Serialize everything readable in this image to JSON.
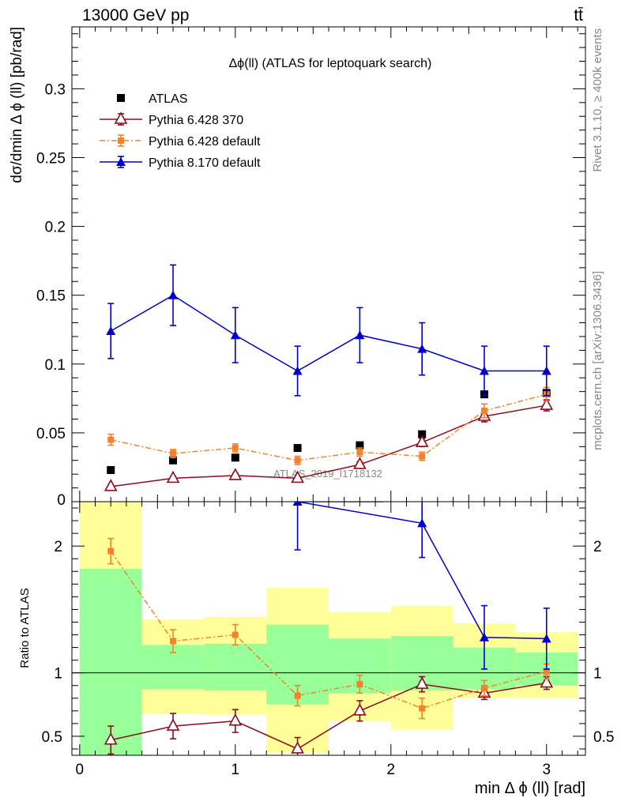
{
  "header": {
    "energy_label": "13000 GeV pp",
    "process_label": "tt̄"
  },
  "side_labels": {
    "rivet": "Rivet 3.1.10, ≥ 400k events",
    "mcplots": "mcplots.cern.ch [arXiv:1306.3436]"
  },
  "watermark": "ATLAS_2019_I1718132",
  "colors": {
    "atlas": "#000000",
    "py6_370": "#8b0b1f",
    "py6_default": "#f5822a",
    "py8": "#0000cc",
    "band_inner": "#99ff99",
    "band_outer": "#ffff99"
  },
  "chart_data": [
    {
      "type": "scatter",
      "title": "Δϕ(ll) (ATLAS for leptoquark search)",
      "xlabel": "min Δ ϕ (ll) [rad]",
      "ylabel": "dσ/dmin Δ ϕ (ll) [pb/rad]",
      "xlim": [
        -0.05,
        3.25
      ],
      "ylim": [
        0,
        0.345
      ],
      "yticks": [
        0.05,
        0.1,
        0.15,
        0.2,
        0.25,
        0.3
      ],
      "ytick_labels": [
        "0.05",
        "0.1",
        "0.15",
        "0.2",
        "0.25",
        "0.3"
      ],
      "yzero_label": "0",
      "legend_position": "top-left",
      "x": [
        0.2,
        0.6,
        1.0,
        1.4,
        1.8,
        2.2,
        2.6,
        3.0
      ],
      "series": [
        {
          "name": "ATLAS",
          "marker": "square",
          "values": [
            0.023,
            0.03,
            0.032,
            0.039,
            0.041,
            0.049,
            0.078,
            0.079
          ]
        },
        {
          "name": "Pythia 6.428 370",
          "marker": "open-triangle",
          "values": [
            0.011,
            0.017,
            0.019,
            0.017,
            0.027,
            0.043,
            0.062,
            0.07
          ],
          "errors": [
            0.001,
            0.001,
            0.0015,
            0.001,
            0.002,
            0.003,
            0.004,
            0.004
          ]
        },
        {
          "name": "Pythia 6.428 default",
          "marker": "square-small",
          "dashed": true,
          "values": [
            0.045,
            0.035,
            0.039,
            0.03,
            0.036,
            0.033,
            0.066,
            0.078
          ],
          "errors": [
            0.004,
            0.003,
            0.003,
            0.003,
            0.003,
            0.003,
            0.005,
            0.005
          ]
        },
        {
          "name": "Pythia 8.170 default",
          "marker": "triangle",
          "values": [
            0.124,
            0.15,
            0.121,
            0.095,
            0.121,
            0.111,
            0.095,
            0.095
          ],
          "errors": [
            0.02,
            0.022,
            0.02,
            0.018,
            0.02,
            0.019,
            0.018,
            0.018
          ]
        }
      ]
    },
    {
      "type": "scatter",
      "ylabel": "Ratio to ATLAS",
      "xlabel": "min Δ ϕ (ll) [rad]",
      "xlim": [
        -0.05,
        3.25
      ],
      "ylim": [
        0.35,
        2.35
      ],
      "xticks": [
        0,
        1,
        2,
        3
      ],
      "xtick_labels": [
        "0",
        "1",
        "2",
        "3"
      ],
      "yticks": [
        0.5,
        1,
        2
      ],
      "ytick_labels": [
        "0.5",
        "1",
        "2"
      ],
      "bins": [
        [
          0,
          0.4
        ],
        [
          0.4,
          0.8
        ],
        [
          0.8,
          1.2
        ],
        [
          1.2,
          1.6
        ],
        [
          1.6,
          2.0
        ],
        [
          2.0,
          2.4
        ],
        [
          2.4,
          2.8
        ],
        [
          2.8,
          3.2
        ]
      ],
      "band_inner": [
        [
          0.35,
          1.82
        ],
        [
          0.87,
          1.22
        ],
        [
          0.86,
          1.23
        ],
        [
          0.75,
          1.38
        ],
        [
          0.84,
          1.27
        ],
        [
          0.86,
          1.29
        ],
        [
          0.87,
          1.2
        ],
        [
          0.9,
          1.16
        ]
      ],
      "band_outer": [
        [
          0.35,
          2.35
        ],
        [
          0.68,
          1.42
        ],
        [
          0.67,
          1.44
        ],
        [
          0.37,
          1.67
        ],
        [
          0.62,
          1.48
        ],
        [
          0.55,
          1.53
        ],
        [
          0.8,
          1.39
        ],
        [
          0.8,
          1.32
        ]
      ],
      "x": [
        0.2,
        0.6,
        1.0,
        1.4,
        1.8,
        2.2,
        2.6,
        3.0
      ],
      "series": [
        {
          "name": "Pythia 6.428 370",
          "values": [
            0.47,
            0.58,
            0.62,
            0.4,
            0.7,
            0.91,
            0.84,
            0.92
          ],
          "errors": [
            0.11,
            0.1,
            0.09,
            0.09,
            0.08,
            0.06,
            0.05,
            0.05
          ]
        },
        {
          "name": "Pythia 6.428 default",
          "values": [
            1.96,
            1.25,
            1.3,
            0.82,
            0.91,
            0.72,
            0.88,
            1.01
          ],
          "errors": [
            0.1,
            0.09,
            0.08,
            0.08,
            0.07,
            0.08,
            0.06,
            0.06
          ]
        },
        {
          "name": "Pythia 8.170 default",
          "values": [
            null,
            null,
            null,
            2.35,
            null,
            2.18,
            1.28,
            1.27
          ],
          "errors": [
            0,
            0,
            0,
            0.38,
            0,
            0.27,
            0.25,
            0.24
          ],
          "line_from": [
            1.95,
            2.35
          ]
        }
      ]
    }
  ]
}
